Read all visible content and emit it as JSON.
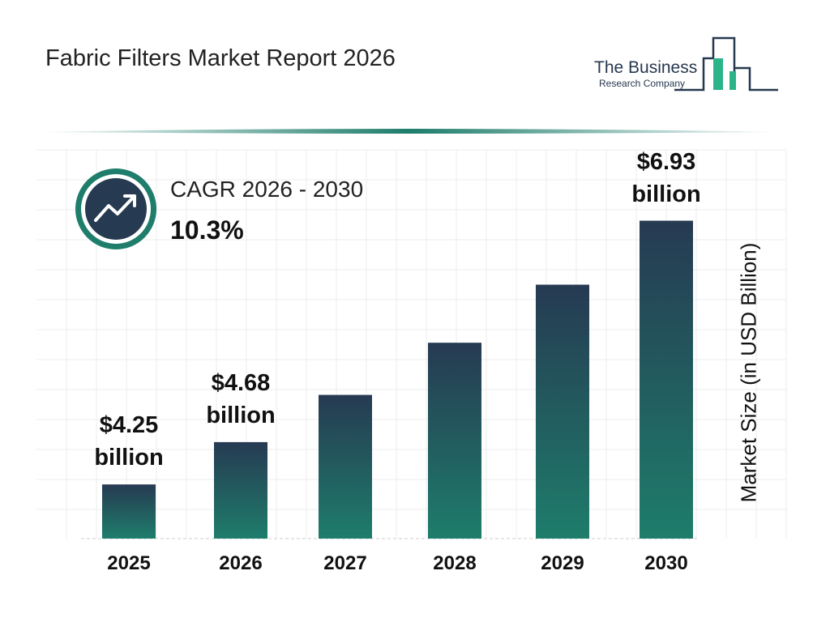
{
  "chart_data": {
    "type": "bar",
    "title": "Fabric Filters Market Report 2026",
    "logo": [
      "The Business",
      "Research Company"
    ],
    "cagr_label": "CAGR 2026 - 2030",
    "cagr_value": "10.3%",
    "y_label": "Market Size (in USD Billion)",
    "categories": [
      "2025",
      "2026",
      "2027",
      "2028",
      "2029",
      "2030"
    ],
    "values": [
      4.25,
      4.68,
      5.16,
      5.69,
      6.28,
      6.93
    ],
    "value_labels": [
      "$4.25 billion",
      "$4.68 billion",
      null,
      null,
      null,
      "$6.93 billion"
    ],
    "colors": [
      "#263a52",
      "#1e7d6b"
    ],
    "ylim": [
      3.7,
      7.0
    ]
  }
}
